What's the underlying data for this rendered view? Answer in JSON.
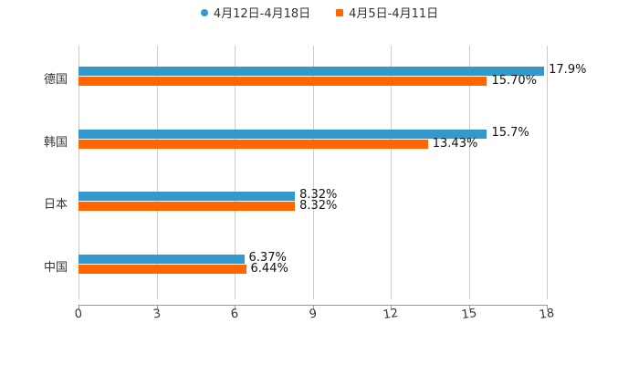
{
  "chart_data": {
    "type": "bar",
    "orientation": "horizontal",
    "categories": [
      "德国",
      "韩国",
      "日本",
      "中国"
    ],
    "series": [
      {
        "name": "4月12日-4月18日",
        "color": "#3399cc",
        "values": [
          17.9,
          15.7,
          8.32,
          6.37
        ],
        "labels": [
          "17.9%",
          "15.7%",
          "8.32%",
          "6.37%"
        ]
      },
      {
        "name": "4月5日-4月11日",
        "color": "#ff6600",
        "values": [
          15.7,
          13.43,
          8.32,
          6.44
        ],
        "labels": [
          "15.70%",
          "13.43%",
          "8.32%",
          "6.44%"
        ]
      }
    ],
    "xlim": [
      0,
      18
    ],
    "xticks": [
      "0",
      "3",
      "6",
      "9",
      "12",
      "15",
      "18"
    ],
    "grid": true,
    "legend_position": "top",
    "title": "",
    "xlabel": "",
    "ylabel": ""
  }
}
